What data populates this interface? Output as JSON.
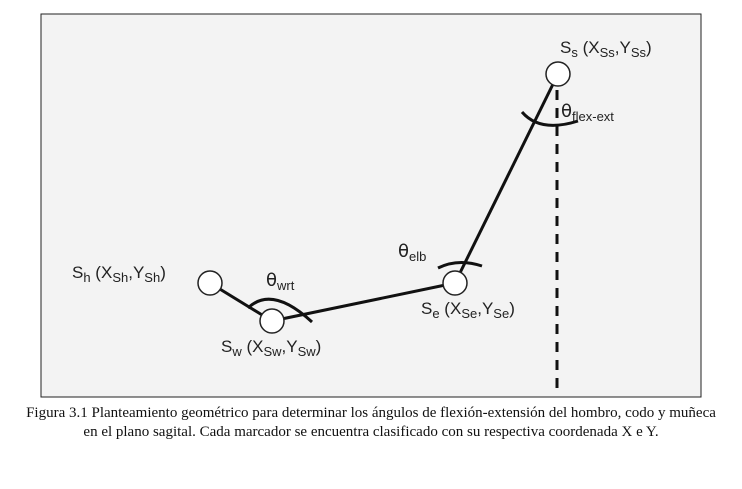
{
  "markers": {
    "shoulder": {
      "main": "S",
      "main_sub": "s",
      "open": " (X",
      "x_sub": "Ss",
      "comma": ",Y",
      "y_sub": "Ss",
      "close": ")"
    },
    "hip": {
      "main": "S",
      "main_sub": "h",
      "open": " (X",
      "x_sub": "Sh",
      "comma": ",Y",
      "y_sub": "Sh",
      "close": ")"
    },
    "elbow": {
      "main": "S",
      "main_sub": "e",
      "open": " (X",
      "x_sub": "Se",
      "comma": ",Y",
      "y_sub": "Se",
      "close": ")"
    },
    "wrist": {
      "main": "S",
      "main_sub": "w",
      "open": " (X",
      "x_sub": "Sw",
      "comma": ",Y",
      "y_sub": "Sw",
      "close": ")"
    }
  },
  "angles": {
    "shoulder": {
      "symbol": "θ",
      "sub": "flex-ext"
    },
    "elbow": {
      "symbol": "θ",
      "sub": "elb"
    },
    "wrist": {
      "symbol": "θ",
      "sub": "wrt"
    }
  },
  "caption": "Figura 3.1 Planteamiento geométrico para determinar los ángulos de flexión-extensión del hombro, codo y muñeca en el plano sagital. Cada marcador se encuentra clasificado con su respectiva coordenada X e Y."
}
